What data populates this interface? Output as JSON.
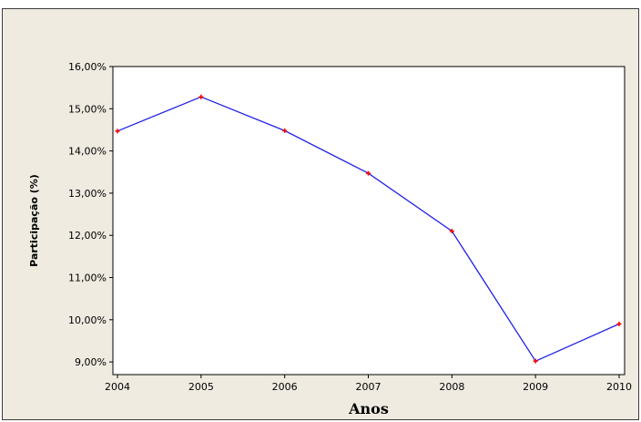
{
  "chart_data": {
    "type": "line",
    "title": "",
    "xlabel": "Anos",
    "ylabel": "Participação (%)",
    "x": [
      "2004",
      "2005",
      "2006",
      "2007",
      "2008",
      "2009",
      "2010"
    ],
    "series": [
      {
        "values": [
          14.47,
          15.28,
          14.48,
          13.47,
          12.1,
          9.02,
          9.9
        ]
      }
    ],
    "yticks": [
      "9,00%",
      "10,00%",
      "11,00%",
      "12,00%",
      "13,00%",
      "14,00%",
      "15,00%",
      "16,00%"
    ],
    "ylim": [
      8.7,
      16.0
    ],
    "grid": false,
    "legend": "none",
    "colors": {
      "line": "#2323e6",
      "marker": "#ff0000",
      "background": "#efebe1",
      "plot_area": "#ffffff",
      "frame": "#3c3c3c"
    }
  }
}
